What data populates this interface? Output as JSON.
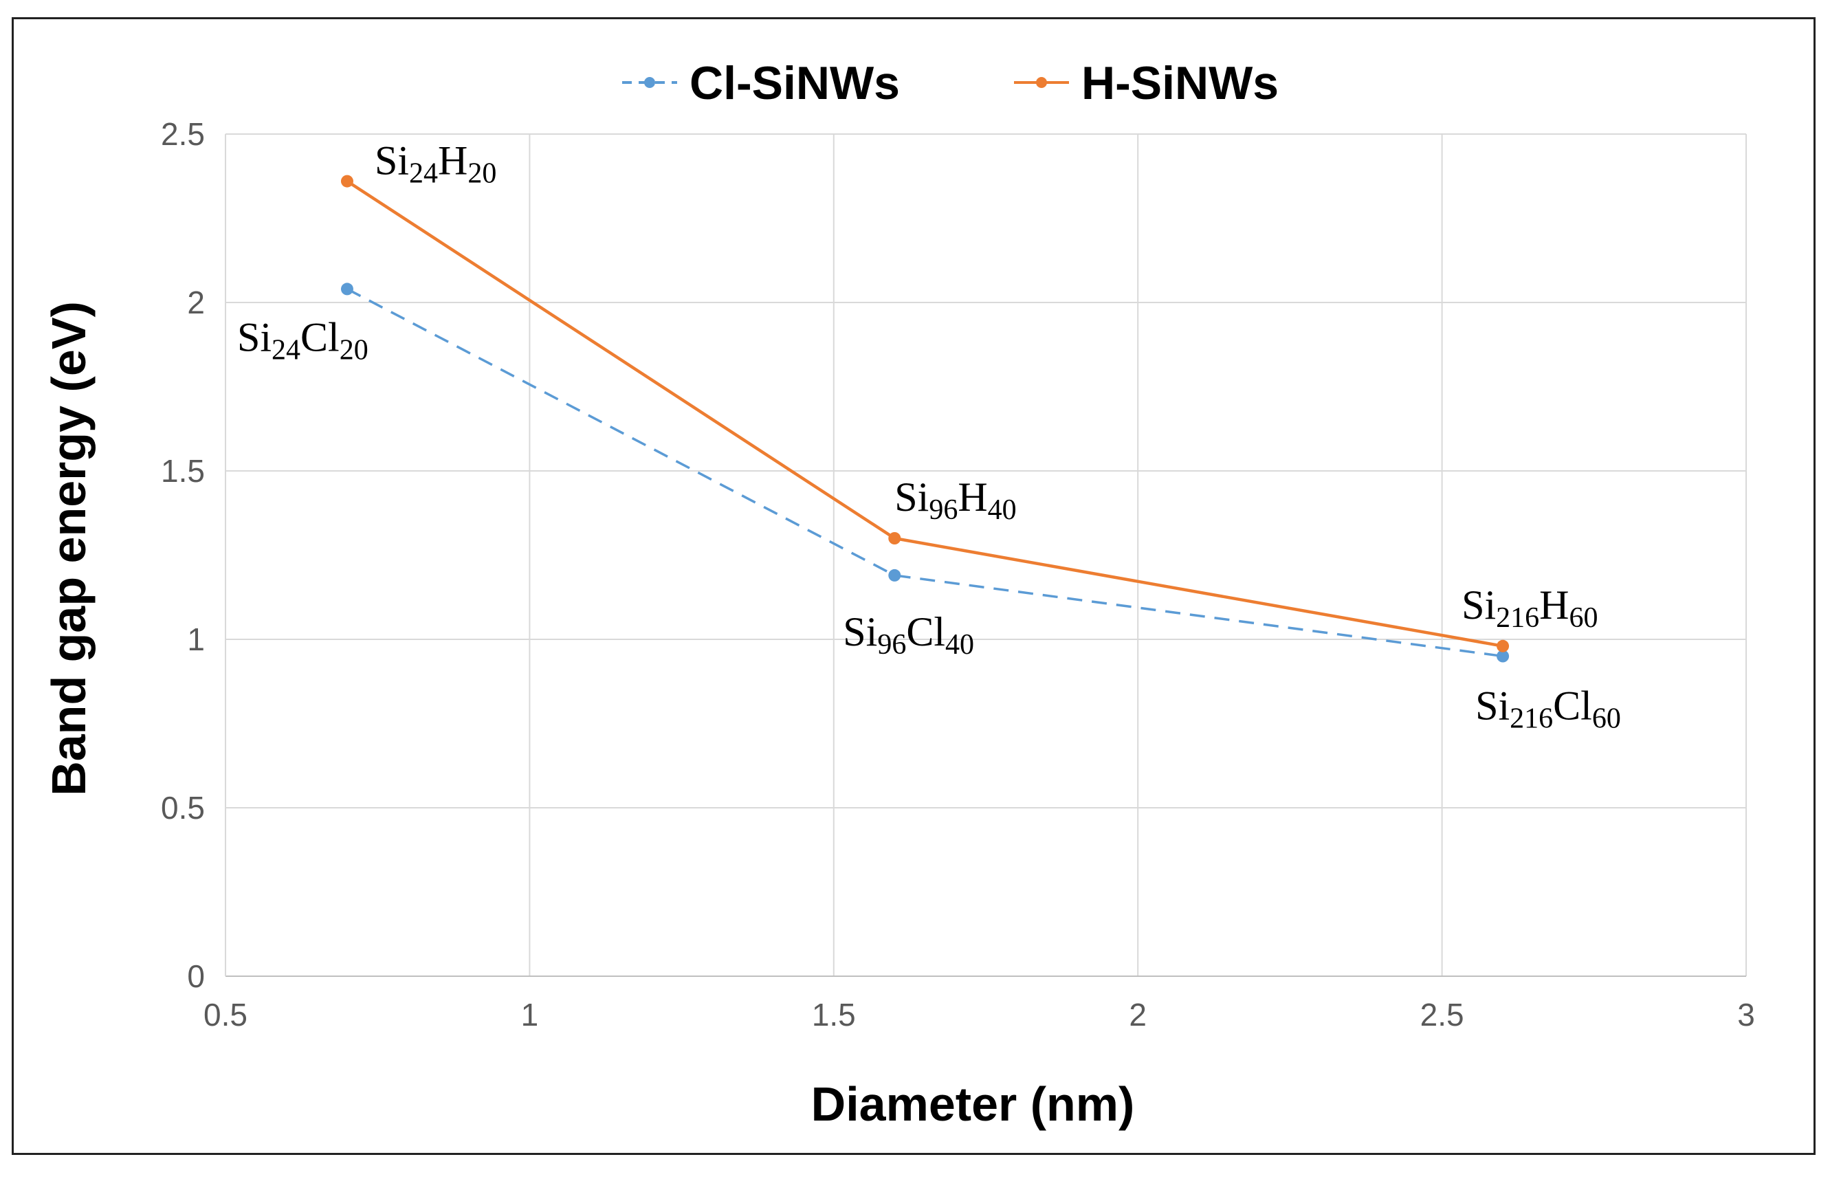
{
  "chart_data": {
    "type": "line",
    "title": "",
    "xlabel": "Diameter (nm)",
    "ylabel": "Band gap energy (eV)",
    "xlim": [
      0.5,
      3
    ],
    "ylim": [
      0,
      2.5
    ],
    "x_ticks": [
      0.5,
      1,
      1.5,
      2,
      2.5,
      3
    ],
    "y_ticks": [
      0,
      0.5,
      1,
      1.5,
      2,
      2.5
    ],
    "x_tick_labels": [
      "0.5",
      "1",
      "1.5",
      "2",
      "2.5",
      "3"
    ],
    "y_tick_labels": [
      "0",
      "0.5",
      "1",
      "1.5",
      "2",
      "2.5"
    ],
    "grid": true,
    "legend_position": "top-center",
    "series": [
      {
        "name": "Cl-SiNWs",
        "color": "#5B9BD5",
        "line_style": "dashed",
        "x": [
          0.7,
          1.6,
          2.6
        ],
        "y": [
          2.04,
          1.19,
          0.95
        ],
        "labels": [
          {
            "prefix": "Si",
            "n1": "24",
            "elem": "Cl",
            "n2": "20"
          },
          {
            "prefix": "Si",
            "n1": "96",
            "elem": "Cl",
            "n2": "40"
          },
          {
            "prefix": "Si",
            "n1": "216",
            "elem": "Cl",
            "n2": "60"
          }
        ]
      },
      {
        "name": "H-SiNWs",
        "color": "#ED7D31",
        "line_style": "solid",
        "x": [
          0.7,
          1.6,
          2.6
        ],
        "y": [
          2.36,
          1.3,
          0.98
        ],
        "labels": [
          {
            "prefix": "Si",
            "n1": "24",
            "elem": "H",
            "n2": "20"
          },
          {
            "prefix": "Si",
            "n1": "96",
            "elem": "H",
            "n2": "40"
          },
          {
            "prefix": "Si",
            "n1": "216",
            "elem": "H",
            "n2": "60"
          }
        ]
      }
    ]
  }
}
